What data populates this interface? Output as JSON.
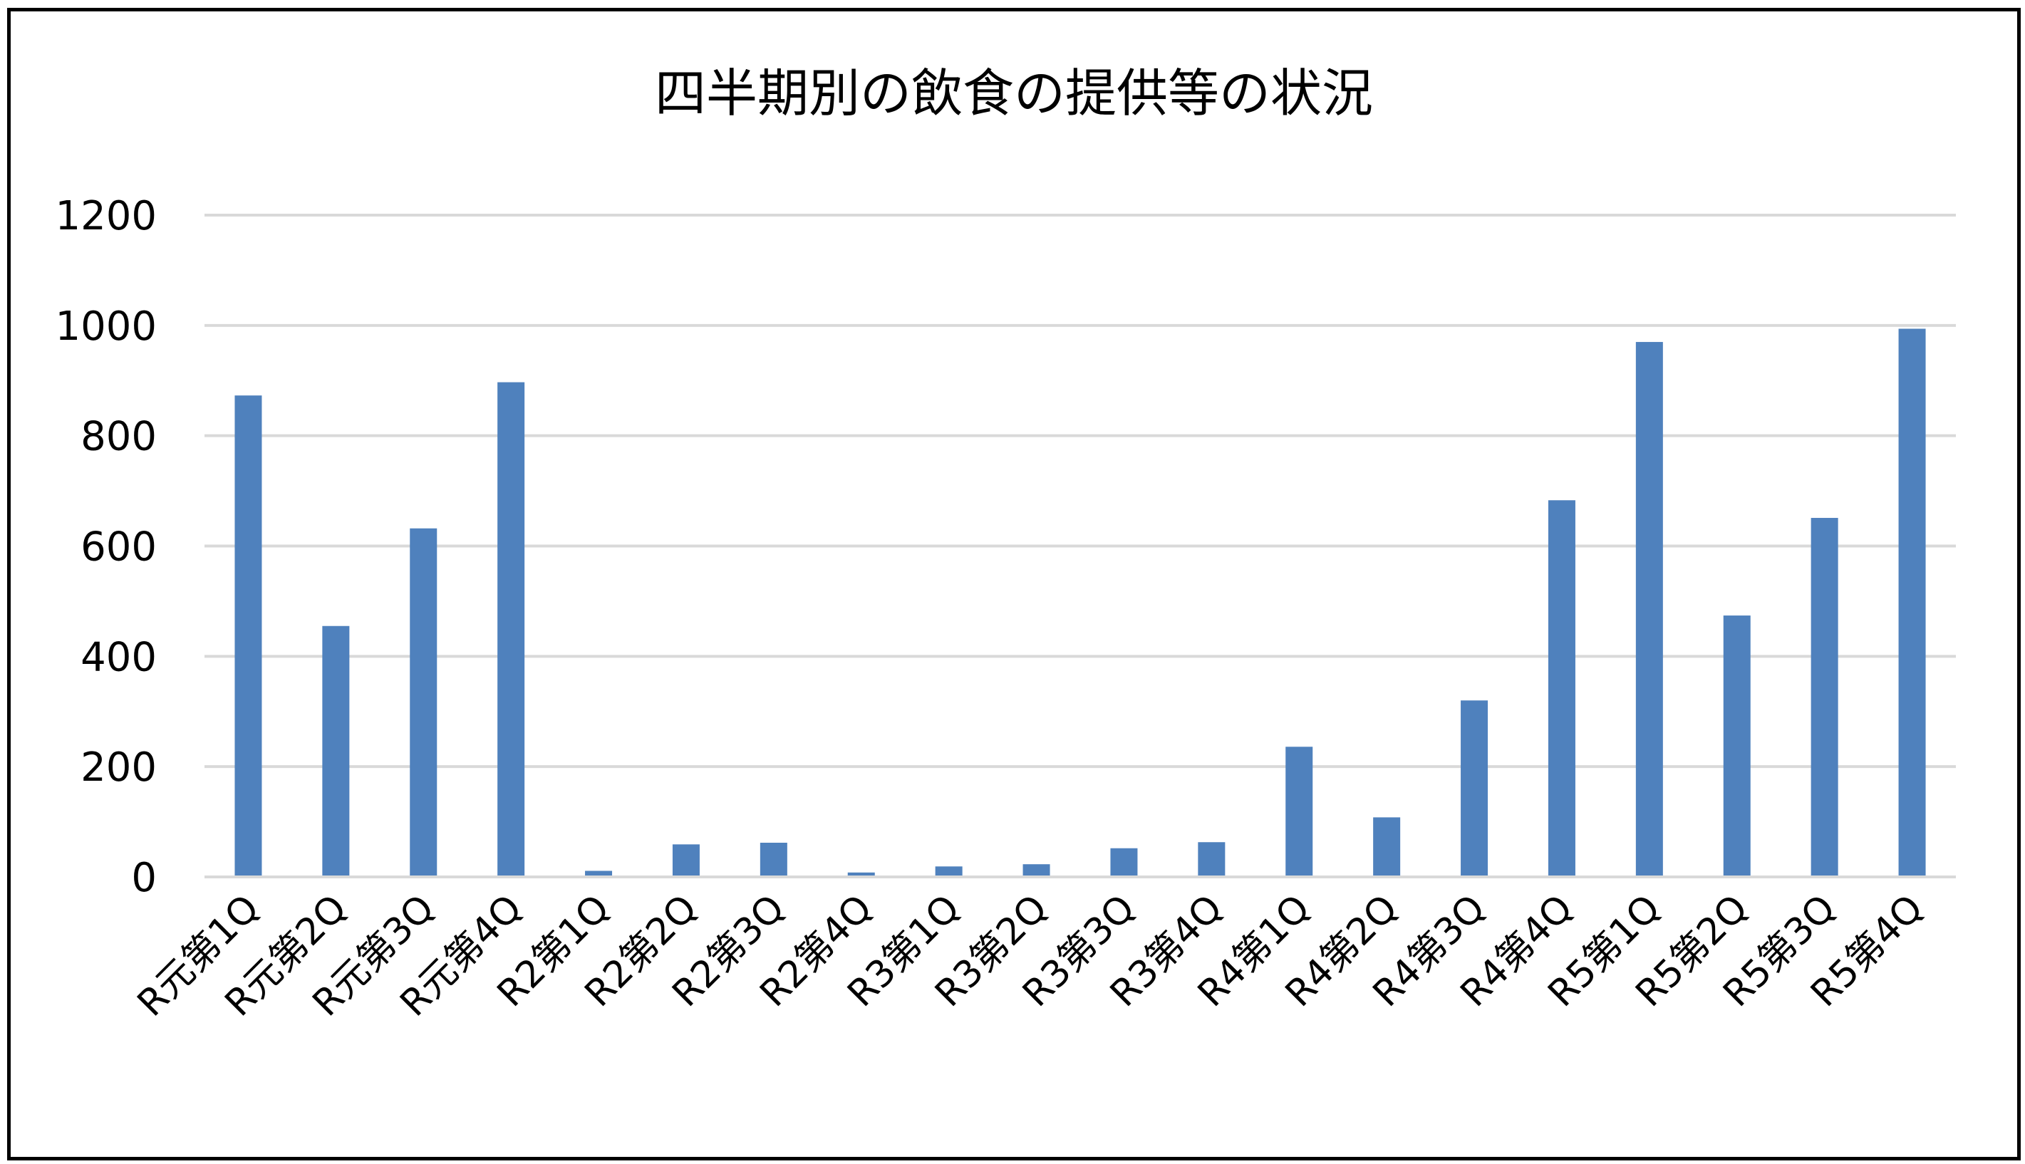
{
  "chart_data": {
    "type": "bar",
    "title": "四半期別の飲食の提供等の状況",
    "xlabel": "",
    "ylabel": "",
    "ylim": [
      0,
      1200
    ],
    "y_ticks": [
      0,
      200,
      400,
      600,
      800,
      1000,
      1200
    ],
    "grid": true,
    "legend": "none",
    "bar_color": "#4f81bd",
    "categories": [
      "R元第1Q",
      "R元第2Q",
      "R元第3Q",
      "R元第4Q",
      "R2第1Q",
      "R2第2Q",
      "R2第3Q",
      "R2第4Q",
      "R3第1Q",
      "R3第2Q",
      "R3第3Q",
      "R3第4Q",
      "R4第1Q",
      "R4第2Q",
      "R4第3Q",
      "R4第4Q",
      "R5第1Q",
      "R5第2Q",
      "R5第3Q",
      "R5第4Q"
    ],
    "values": [
      873,
      455,
      632,
      897,
      11,
      59,
      62,
      8,
      19,
      23,
      52,
      63,
      236,
      108,
      320,
      683,
      970,
      474,
      651,
      994
    ]
  }
}
